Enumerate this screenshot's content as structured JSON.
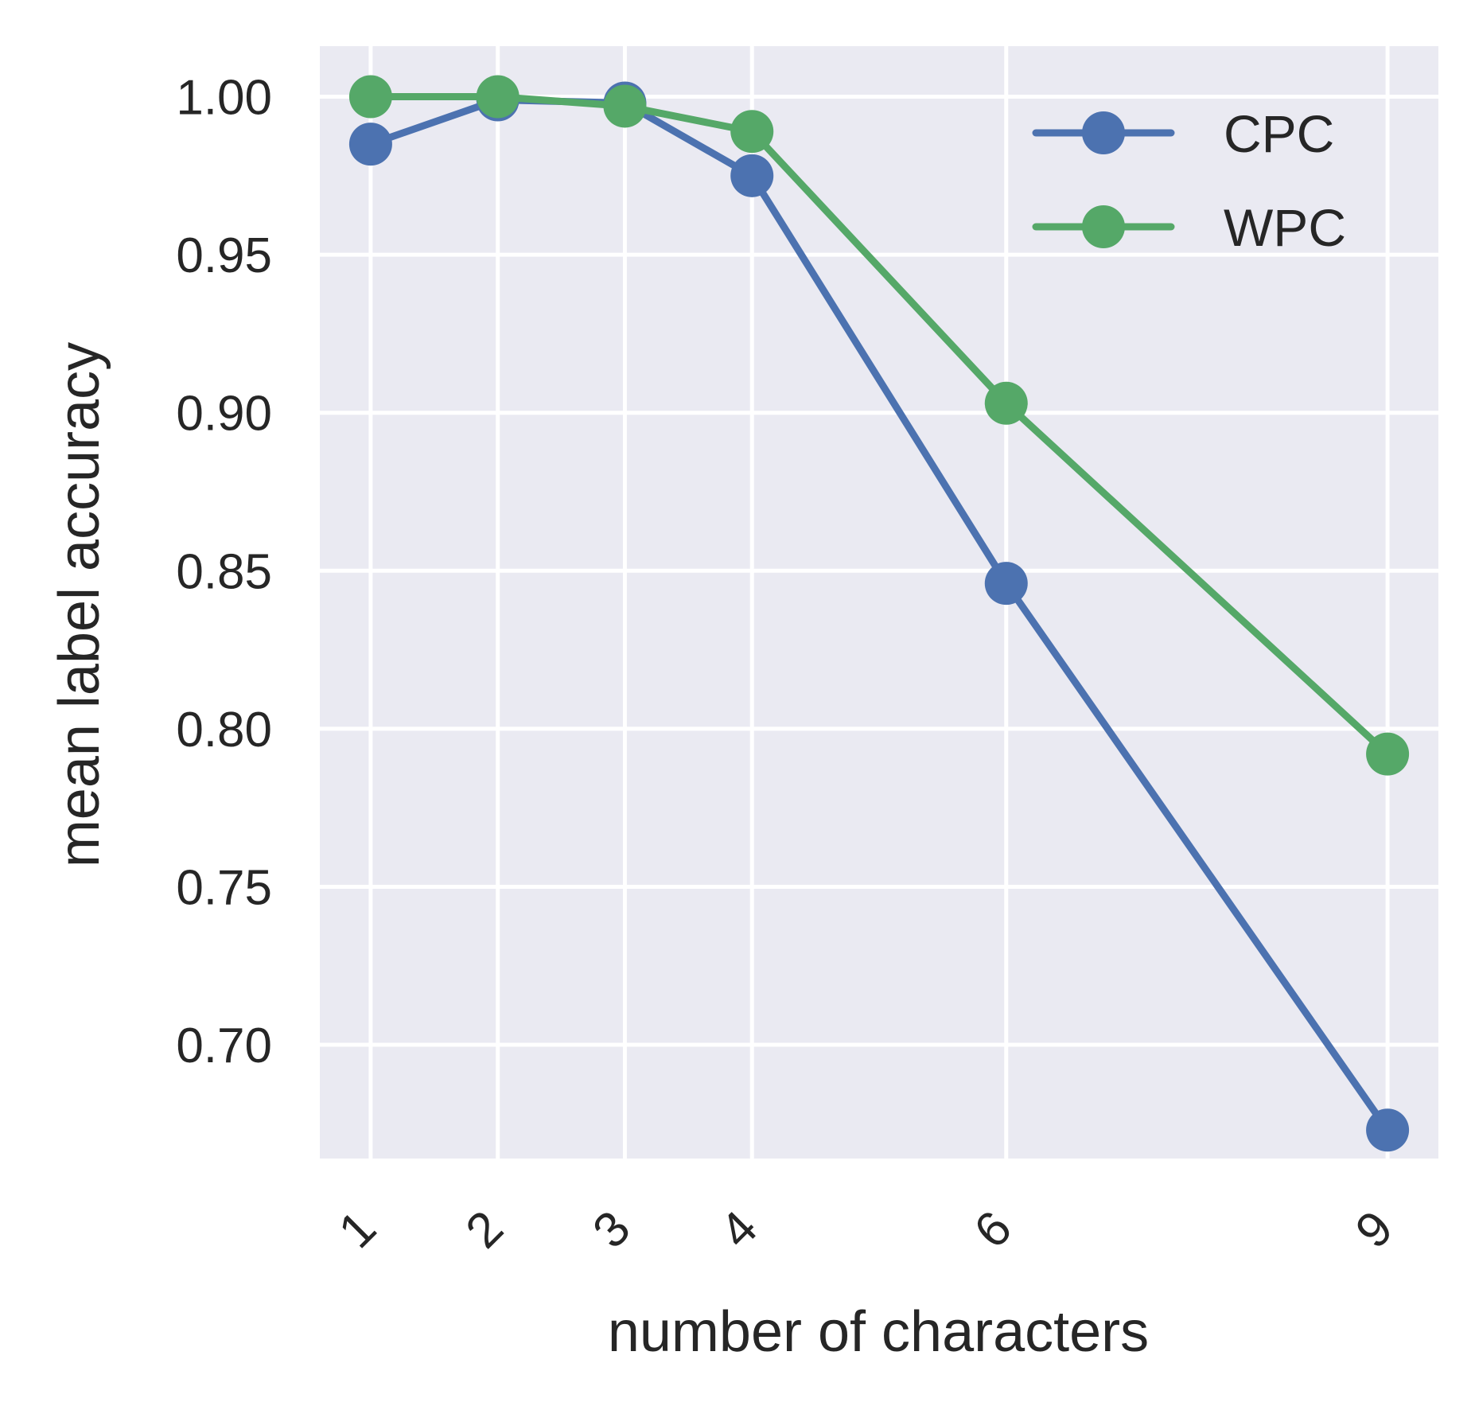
{
  "chart_data": {
    "type": "line",
    "title": "",
    "xlabel": "number of characters",
    "ylabel": "mean label accuracy",
    "x": [
      1,
      2,
      3,
      4,
      6,
      9
    ],
    "xticks": [
      "1",
      "2",
      "3",
      "4",
      "6",
      "9"
    ],
    "yticks": [
      "0.70",
      "0.75",
      "0.80",
      "0.85",
      "0.90",
      "0.95",
      "1.00"
    ],
    "xlim": [
      0.6,
      9.4
    ],
    "ylim": [
      0.664,
      1.016
    ],
    "grid": true,
    "legend": "top-right",
    "series": [
      {
        "name": "CPC",
        "color": "#4c72b0",
        "values": [
          0.985,
          0.999,
          0.998,
          0.975,
          0.846,
          0.673
        ]
      },
      {
        "name": "WPC",
        "color": "#55a868",
        "values": [
          1.0,
          1.0,
          0.997,
          0.989,
          0.903,
          0.792
        ]
      }
    ]
  }
}
